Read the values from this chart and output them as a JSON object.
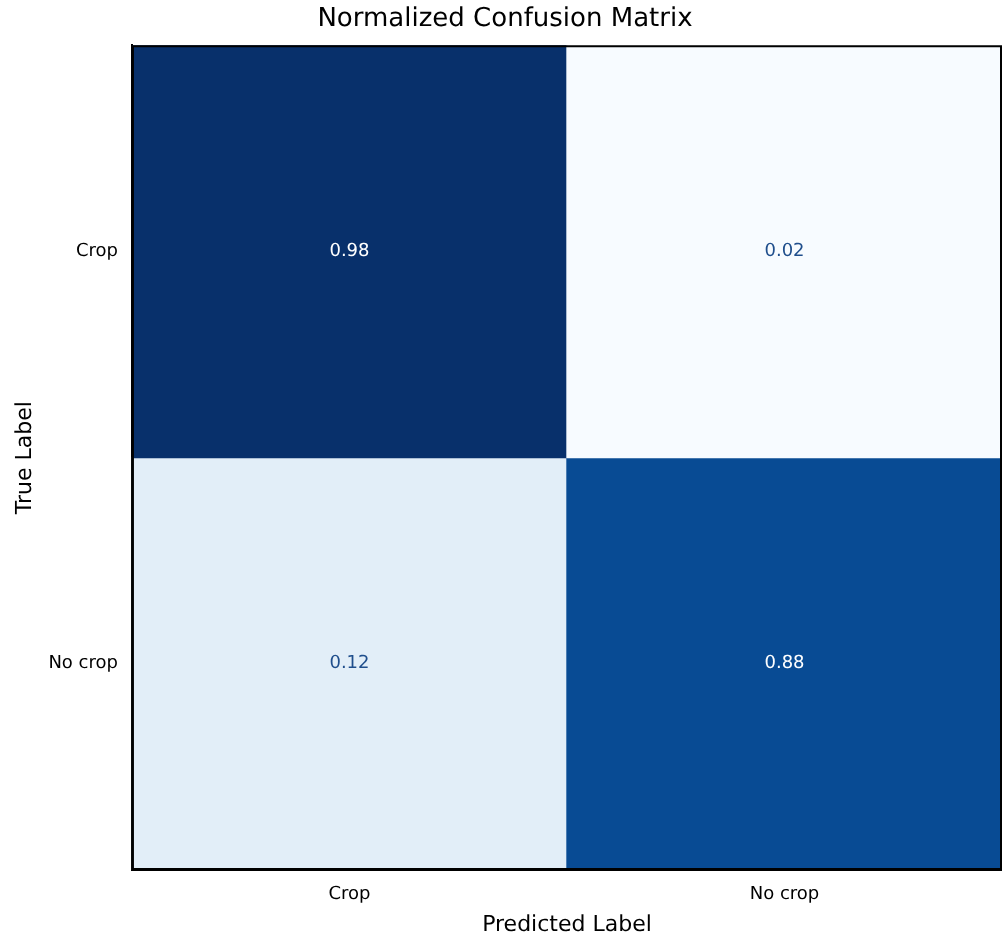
{
  "chart_data": {
    "type": "heatmap",
    "title": "Normalized Confusion Matrix",
    "xlabel": "Predicted Label",
    "ylabel": "True Label",
    "categories": [
      "Crop",
      "No crop"
    ],
    "y_categories": [
      "Crop",
      "No crop"
    ],
    "cells": [
      [
        0.98,
        0.02
      ],
      [
        0.12,
        0.88
      ]
    ],
    "data_labels": true,
    "grid": false
  }
}
